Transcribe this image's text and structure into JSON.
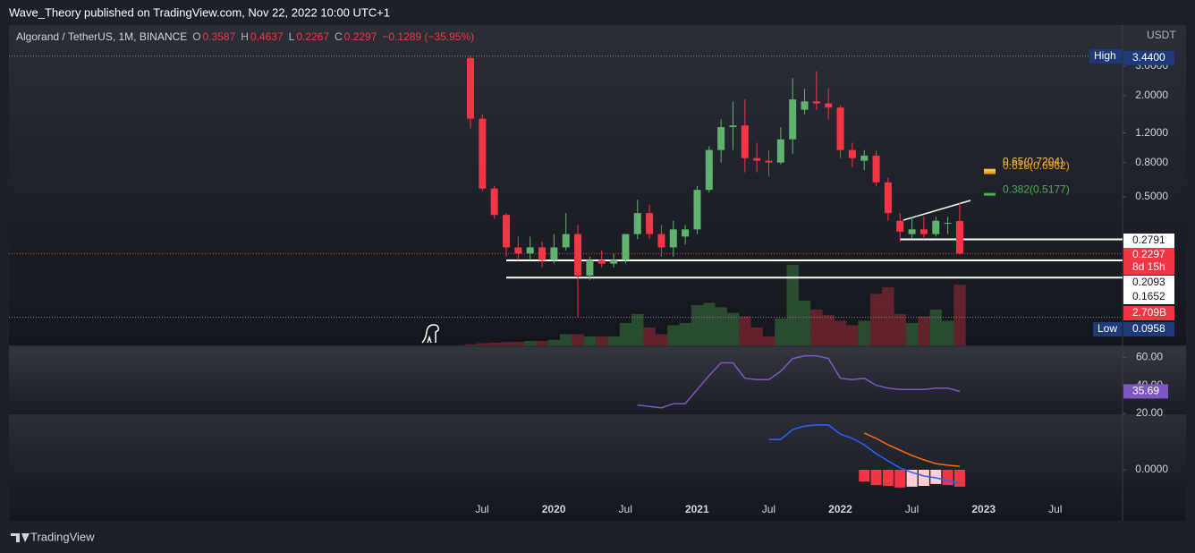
{
  "header": {
    "publisher": "Wave_Theory published on TradingView.com, Nov 22, 2022 10:00 UTC+1",
    "brand": "TradingView"
  },
  "legend": {
    "symbol": "Algorand / TetherUS, 1M, BINANCE",
    "o_label": "O",
    "o": "0.3587",
    "h_label": "H",
    "h": "0.4637",
    "l_label": "L",
    "l": "0.2267",
    "c_label": "C",
    "c": "0.2297",
    "change": "−0.1289 (−35.95%)"
  },
  "chart_data": [
    {
      "type": "candlestick",
      "currency": "USDT",
      "log_scale": true,
      "ylim": [
        0.0652,
        5.27
      ],
      "yticks": [
        {
          "value": 3,
          "label": "3.0000"
        },
        {
          "value": 2,
          "label": "2.0000"
        },
        {
          "value": 1.2,
          "label": "1.2000"
        },
        {
          "value": 0.8,
          "label": "0.8000"
        },
        {
          "value": 0.5,
          "label": "0.5000"
        }
      ],
      "up_color": "#5fb36f",
      "down_color": "#f23645",
      "time_labels": [
        "Jul",
        "2020",
        "Jul",
        "2021",
        "Jul",
        "2022",
        "Jul",
        "2023",
        "Jul"
      ],
      "candles": [
        {
          "o": 3.35,
          "h": 3.44,
          "l": 1.28,
          "c": 1.46
        },
        {
          "o": 1.46,
          "h": 1.55,
          "l": 0.54,
          "c": 0.56
        },
        {
          "o": 0.56,
          "h": 0.58,
          "l": 0.37,
          "c": 0.39
        },
        {
          "o": 0.39,
          "h": 0.4,
          "l": 0.22,
          "c": 0.25
        },
        {
          "o": 0.25,
          "h": 0.29,
          "l": 0.21,
          "c": 0.23
        },
        {
          "o": 0.23,
          "h": 0.29,
          "l": 0.21,
          "c": 0.25
        },
        {
          "o": 0.25,
          "h": 0.27,
          "l": 0.19,
          "c": 0.21
        },
        {
          "o": 0.21,
          "h": 0.3,
          "l": 0.2,
          "c": 0.25
        },
        {
          "o": 0.25,
          "h": 0.4,
          "l": 0.24,
          "c": 0.3
        },
        {
          "o": 0.3,
          "h": 0.34,
          "l": 0.0958,
          "c": 0.17
        },
        {
          "o": 0.17,
          "h": 0.22,
          "l": 0.16,
          "c": 0.21
        },
        {
          "o": 0.21,
          "h": 0.24,
          "l": 0.19,
          "c": 0.2
        },
        {
          "o": 0.2,
          "h": 0.23,
          "l": 0.19,
          "c": 0.21
        },
        {
          "o": 0.21,
          "h": 0.3,
          "l": 0.2,
          "c": 0.3
        },
        {
          "o": 0.3,
          "h": 0.48,
          "l": 0.28,
          "c": 0.4
        },
        {
          "o": 0.4,
          "h": 0.45,
          "l": 0.28,
          "c": 0.3
        },
        {
          "o": 0.3,
          "h": 0.34,
          "l": 0.22,
          "c": 0.25
        },
        {
          "o": 0.25,
          "h": 0.36,
          "l": 0.22,
          "c": 0.32
        },
        {
          "o": 0.29,
          "h": 0.34,
          "l": 0.26,
          "c": 0.32
        },
        {
          "o": 0.32,
          "h": 0.58,
          "l": 0.3,
          "c": 0.55
        },
        {
          "o": 0.55,
          "h": 1.0,
          "l": 0.53,
          "c": 0.95
        },
        {
          "o": 0.95,
          "h": 1.45,
          "l": 0.8,
          "c": 1.3
        },
        {
          "o": 1.3,
          "h": 1.85,
          "l": 0.95,
          "c": 1.33
        },
        {
          "o": 1.33,
          "h": 1.9,
          "l": 0.7,
          "c": 0.85
        },
        {
          "o": 0.85,
          "h": 1.05,
          "l": 0.7,
          "c": 0.82
        },
        {
          "o": 0.82,
          "h": 0.95,
          "l": 0.66,
          "c": 0.8
        },
        {
          "o": 0.8,
          "h": 1.3,
          "l": 0.78,
          "c": 1.1
        },
        {
          "o": 1.1,
          "h": 2.55,
          "l": 0.9,
          "c": 1.9
        },
        {
          "o": 1.65,
          "h": 2.2,
          "l": 1.55,
          "c": 1.85
        },
        {
          "o": 1.85,
          "h": 2.8,
          "l": 1.65,
          "c": 1.8
        },
        {
          "o": 1.8,
          "h": 2.2,
          "l": 1.45,
          "c": 1.7
        },
        {
          "o": 1.7,
          "h": 1.75,
          "l": 0.85,
          "c": 0.95
        },
        {
          "o": 0.95,
          "h": 1.05,
          "l": 0.75,
          "c": 0.85
        },
        {
          "o": 0.82,
          "h": 0.95,
          "l": 0.72,
          "c": 0.88
        },
        {
          "o": 0.88,
          "h": 0.95,
          "l": 0.58,
          "c": 0.61
        },
        {
          "o": 0.61,
          "h": 0.65,
          "l": 0.36,
          "c": 0.4
        },
        {
          "o": 0.36,
          "h": 0.4,
          "l": 0.27,
          "c": 0.31
        },
        {
          "o": 0.3,
          "h": 0.38,
          "l": 0.28,
          "c": 0.32
        },
        {
          "o": 0.32,
          "h": 0.38,
          "l": 0.28,
          "c": 0.3
        },
        {
          "o": 0.3,
          "h": 0.38,
          "l": 0.29,
          "c": 0.36
        },
        {
          "o": 0.35,
          "h": 0.38,
          "l": 0.3,
          "c": 0.35
        },
        {
          "o": 0.3587,
          "h": 0.4637,
          "l": 0.2267,
          "c": 0.2297
        }
      ],
      "high": {
        "label": "High",
        "value": {
          "value": 3.44,
          "label": "3.4400"
        }
      },
      "low": {
        "label": "Low",
        "value": {
          "value": 0.0958,
          "label": "0.0958"
        }
      },
      "levels": [
        {
          "value": 0.2791,
          "label": "0.2791"
        },
        {
          "value": 0.2093,
          "label": "0.2093"
        },
        {
          "value": 0.1652,
          "label": "0.1652"
        }
      ],
      "last": {
        "value": 0.2297,
        "label": "0.2297"
      },
      "countdown": "8d 15h",
      "fib": [
        {
          "value": 0.7204,
          "label": "0.65(0.7204)",
          "color": "#f7c744"
        },
        {
          "value": 0.6962,
          "label": "0.618(0.6962)",
          "color": "#f59d1f"
        },
        {
          "value": 0.5177,
          "label": "0.382(0.5177)",
          "color": "#4caf50"
        }
      ],
      "volume_ylim": [
        0,
        14.3
      ],
      "volume": [
        0.05,
        0.1,
        0.12,
        0.15,
        0.16,
        0.2,
        0.2,
        0.25,
        0.5,
        0.5,
        0.4,
        0.4,
        0.4,
        1.0,
        1.4,
        0.8,
        0.5,
        0.9,
        1.0,
        1.8,
        1.9,
        1.7,
        1.45,
        1.3,
        0.8,
        0.4,
        1.2,
        3.6,
        2.0,
        1.6,
        1.35,
        1.1,
        0.9,
        1.1,
        2.3,
        2.6,
        1.4,
        1.0,
        1.3,
        1.6,
        1.1,
        2.709
      ],
      "volume_label": {
        "value": 2.709,
        "label": "2.709B"
      }
    },
    {
      "type": "line",
      "name": "RSI",
      "color": "#7e57c2",
      "ylim": [
        19.4,
        67.1
      ],
      "yticks": [
        {
          "value": 60,
          "label": "60.00"
        },
        {
          "value": 40,
          "label": "40.00"
        },
        {
          "value": 20,
          "label": "20.00"
        }
      ],
      "values": [
        null,
        null,
        null,
        null,
        null,
        null,
        null,
        null,
        null,
        null,
        null,
        null,
        null,
        null,
        26,
        25,
        24,
        27,
        27,
        37,
        47,
        56,
        56,
        45,
        44,
        44,
        50,
        59,
        61,
        61,
        59,
        45,
        44,
        45,
        40,
        38,
        37,
        37,
        37,
        38,
        38,
        35.69
      ],
      "last_label": {
        "value": 35.69,
        "label": "35.69"
      }
    },
    {
      "type": "macd",
      "ylim": [
        -0.19,
        0.2
      ],
      "yticks": [
        {
          "value": 0,
          "label": "0.0000"
        }
      ],
      "series": [
        {
          "name": "MACD",
          "color": "#2962ff",
          "values": [
            null,
            null,
            null,
            null,
            null,
            null,
            null,
            null,
            null,
            null,
            null,
            null,
            null,
            null,
            null,
            null,
            null,
            null,
            null,
            null,
            null,
            null,
            null,
            null,
            null,
            0.113,
            0.113,
            0.15,
            0.163,
            0.167,
            0.167,
            0.133,
            0.117,
            0.093,
            0.06,
            0.033,
            0.007,
            -0.01,
            -0.023,
            -0.03,
            -0.04,
            -0.05
          ]
        },
        {
          "name": "Signal",
          "color": "#ff6d00",
          "values": [
            null,
            null,
            null,
            null,
            null,
            null,
            null,
            null,
            null,
            null,
            null,
            null,
            null,
            null,
            null,
            null,
            null,
            null,
            null,
            null,
            null,
            null,
            null,
            null,
            null,
            null,
            null,
            null,
            null,
            null,
            null,
            null,
            null,
            0.137,
            0.117,
            0.093,
            0.073,
            0.053,
            0.037,
            0.023,
            0.017,
            0.013
          ]
        }
      ],
      "histogram": [
        null,
        null,
        null,
        null,
        null,
        null,
        null,
        null,
        null,
        null,
        null,
        null,
        null,
        null,
        null,
        null,
        null,
        null,
        null,
        null,
        null,
        null,
        null,
        null,
        null,
        null,
        null,
        null,
        null,
        null,
        null,
        null,
        null,
        -0.044,
        -0.057,
        -0.06,
        -0.066,
        -0.063,
        -0.06,
        -0.053,
        -0.057,
        -0.063
      ],
      "hist_colors": {
        "falling": "#f23645",
        "rising": "#ffcdd2"
      }
    }
  ]
}
